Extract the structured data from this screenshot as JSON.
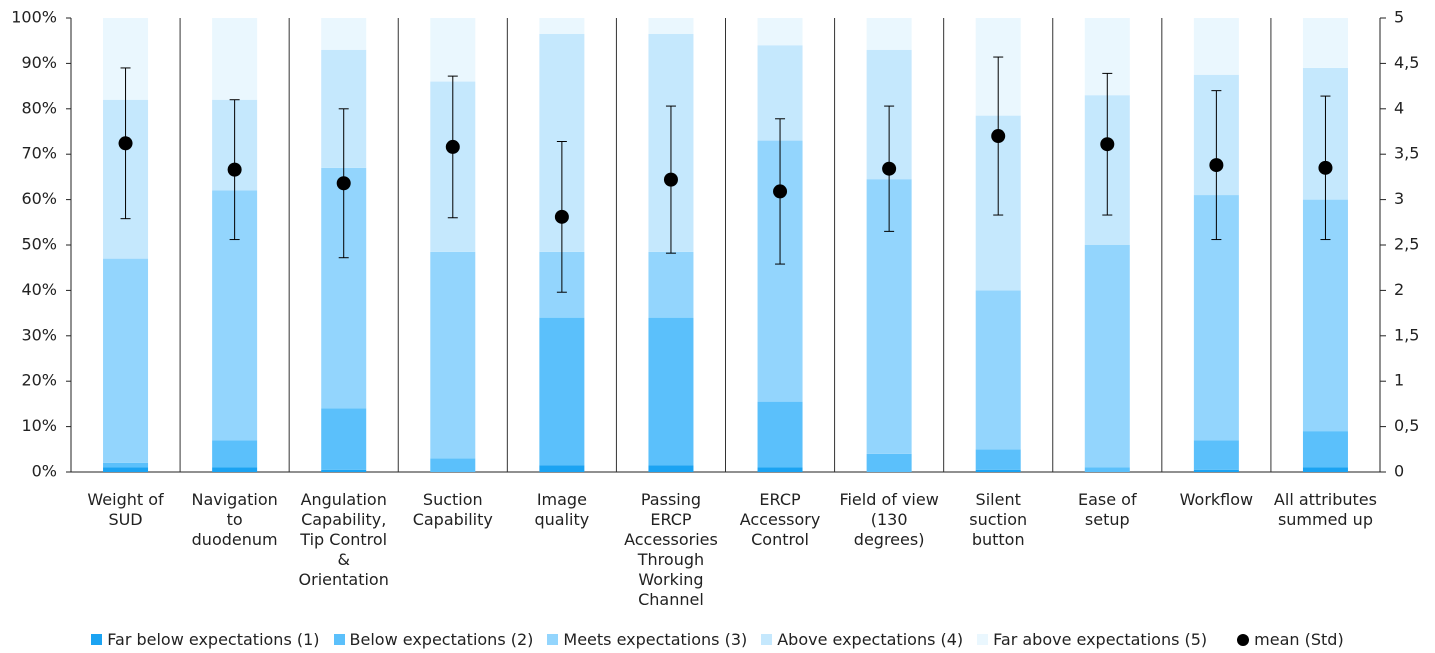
{
  "chart_data": {
    "type": "stacked-bar",
    "categories": [
      "Weight of SUD",
      "Navigation to duodenum",
      "Angulation Capability, Tip Control & Orientation",
      "Suction Capability",
      "Image quality",
      "Passing ERCP Accessories Through Working Channel",
      "ERCP Accessory Control",
      "Field of view (130 degrees)",
      "Silent suction button",
      "Ease of setup",
      "Workflow",
      "All attributes summed up"
    ],
    "series": [
      {
        "name": "Far below expectations (1)",
        "color": "#1ba3f2",
        "values": [
          1,
          1,
          0.5,
          0,
          1.5,
          1.5,
          1,
          0,
          0.5,
          0,
          0.5,
          1
        ]
      },
      {
        "name": "Below expectations (2)",
        "color": "#5bc0fb",
        "values": [
          1,
          6,
          13.5,
          3,
          32.5,
          32.5,
          14.5,
          4,
          4.5,
          1,
          6.5,
          8
        ]
      },
      {
        "name": "Meets expectations (3)",
        "color": "#93d5fd",
        "values": [
          45,
          55,
          53,
          45.5,
          14.5,
          14.5,
          57.5,
          60.5,
          35,
          49,
          54,
          51
        ]
      },
      {
        "name": "Above expectations (4)",
        "color": "#c5e8fd",
        "values": [
          35,
          20,
          26,
          37.5,
          48,
          48,
          21,
          28.5,
          38.5,
          33,
          26.5,
          29
        ]
      },
      {
        "name": "Far above expectations (5)",
        "color": "#eaf7fe",
        "values": [
          18,
          18,
          7,
          14,
          3.5,
          3.5,
          6,
          7,
          21.5,
          17,
          12.5,
          11
        ]
      }
    ],
    "mean": {
      "name": "mean (Std)",
      "color": "#000000",
      "axis": "y2",
      "values": [
        3.62,
        3.33,
        3.18,
        3.58,
        2.81,
        3.22,
        3.09,
        3.34,
        3.7,
        3.61,
        3.38,
        3.35
      ],
      "std": [
        0.83,
        0.77,
        0.82,
        0.78,
        0.83,
        0.81,
        0.8,
        0.69,
        0.87,
        0.78,
        0.82,
        0.79
      ]
    },
    "ylim": [
      0,
      100
    ],
    "yticks": [
      {
        "value": 0,
        "label": "0%"
      },
      {
        "value": 10,
        "label": "10%"
      },
      {
        "value": 20,
        "label": "20%"
      },
      {
        "value": 30,
        "label": "30%"
      },
      {
        "value": 40,
        "label": "40%"
      },
      {
        "value": 50,
        "label": "50%"
      },
      {
        "value": 60,
        "label": "60%"
      },
      {
        "value": 70,
        "label": "70%"
      },
      {
        "value": 80,
        "label": "80%"
      },
      {
        "value": 90,
        "label": "90%"
      },
      {
        "value": 100,
        "label": "100%"
      }
    ],
    "y2lim": [
      0,
      5
    ],
    "y2ticks": [
      0,
      {
        "value": 0.5,
        "label": "0,5"
      },
      1,
      {
        "value": 1.5,
        "label": "1,5"
      },
      2,
      {
        "value": 2.5,
        "label": "2,5"
      },
      3,
      {
        "value": 3.5,
        "label": "3,5"
      },
      4,
      {
        "value": 4.5,
        "label": "4,5"
      },
      5
    ],
    "grid": false
  }
}
